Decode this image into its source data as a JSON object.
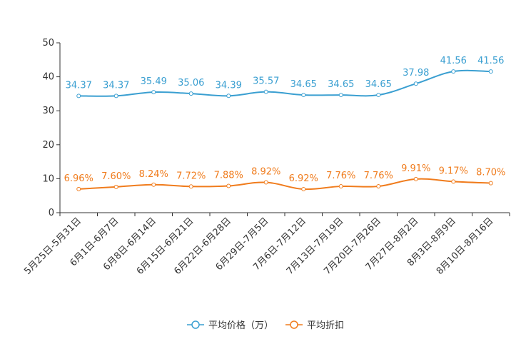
{
  "chart_data": {
    "type": "line",
    "title": "",
    "xlabel": "",
    "ylabel": "",
    "ylim": [
      0,
      50
    ],
    "yticks": [
      0,
      10,
      20,
      30,
      40,
      50
    ],
    "grid": false,
    "legend_position": "bottom-center",
    "categories": [
      "5月25日-5月31日",
      "6月1日-6月7日",
      "6月8日-6月14日",
      "6月15日-6月21日",
      "6月22日-6月28日",
      "6月29日-7月5日",
      "7月6日-7月12日",
      "7月13日-7月19日",
      "7月20日-7月26日",
      "7月27日-8月2日",
      "8月3日-8月9日",
      "8月10日-8月16日"
    ],
    "series": [
      {
        "name": "平均价格（万）",
        "color": "#3a9fd1",
        "values": [
          34.37,
          34.37,
          35.49,
          35.06,
          34.39,
          35.57,
          34.65,
          34.65,
          34.65,
          37.98,
          41.56,
          41.56
        ],
        "labels": [
          "34.37",
          "34.37",
          "35.49",
          "35.06",
          "34.39",
          "35.57",
          "34.65",
          "34.65",
          "34.65",
          "37.98",
          "41.56",
          "41.56"
        ]
      },
      {
        "name": "平均折扣",
        "color": "#f07c1d",
        "values": [
          6.96,
          7.6,
          8.24,
          7.72,
          7.88,
          8.92,
          6.92,
          7.76,
          7.76,
          9.91,
          9.17,
          8.7
        ],
        "labels": [
          "6.96%",
          "7.60%",
          "8.24%",
          "7.72%",
          "7.88%",
          "8.92%",
          "6.92%",
          "7.76%",
          "7.76%",
          "9.91%",
          "9.17%",
          "8.70%"
        ]
      }
    ]
  }
}
